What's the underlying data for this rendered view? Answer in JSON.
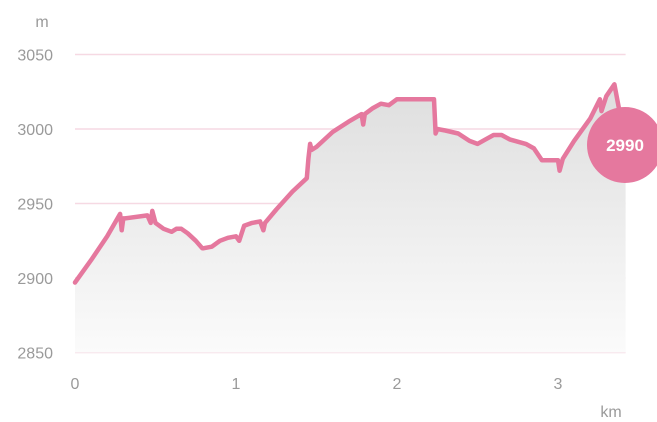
{
  "chart_data": {
    "type": "area",
    "title": "",
    "xlabel": "km",
    "ylabel": "m",
    "xlim": [
      0,
      3.42
    ],
    "ylim": [
      2845,
      3060
    ],
    "x_ticks": [
      0,
      1,
      2,
      3
    ],
    "y_ticks": [
      2850,
      2900,
      2950,
      3000,
      3050
    ],
    "grid": true,
    "line_color": "#e5789e",
    "gridline_color": "#f6d9e3",
    "fill_top_color": "#dedede",
    "fill_bottom_color": "#fbfbfb",
    "badge_label": "2990",
    "series": [
      {
        "x": [
          0,
          0.1,
          0.2,
          0.28,
          0.29,
          0.3,
          0.31,
          0.45,
          0.47,
          0.48,
          0.5,
          0.55,
          0.6,
          0.63,
          0.66,
          0.7,
          0.75,
          0.79,
          0.8,
          0.85,
          0.9,
          0.95,
          1.0,
          1.02,
          1.05,
          1.1,
          1.15,
          1.17,
          1.18,
          1.25,
          1.35,
          1.44,
          1.45,
          1.46,
          1.47,
          1.5,
          1.55,
          1.6,
          1.7,
          1.78,
          1.79,
          1.8,
          1.85,
          1.9,
          1.95,
          2.0,
          2.03,
          2.1,
          2.2,
          2.23,
          2.24,
          2.25,
          2.3,
          2.38,
          2.45,
          2.5,
          2.55,
          2.6,
          2.65,
          2.7,
          2.8,
          2.85,
          2.9,
          3.0,
          3.01,
          3.03,
          3.1,
          3.2,
          3.26,
          3.27,
          3.3,
          3.35,
          3.42
        ],
        "y": [
          2897,
          2912,
          2928,
          2943,
          2932,
          2940,
          2940,
          2942,
          2937,
          2945,
          2937,
          2933,
          2931,
          2933,
          2933,
          2930,
          2925,
          2920,
          2920,
          2921,
          2925,
          2927,
          2928,
          2925,
          2935,
          2937,
          2938,
          2932,
          2937,
          2946,
          2958,
          2967,
          2980,
          2990,
          2986,
          2988,
          2993,
          2998,
          3005,
          3010,
          3003,
          3010,
          3014,
          3017,
          3016,
          3020,
          3020,
          3020,
          3020,
          3020,
          2997,
          3000,
          2999,
          2997,
          2992,
          2990,
          2993,
          2996,
          2996,
          2993,
          2990,
          2987,
          2979,
          2979,
          2972,
          2980,
          2992,
          3007,
          3020,
          3012,
          3022,
          3030,
          2990
        ]
      }
    ]
  }
}
